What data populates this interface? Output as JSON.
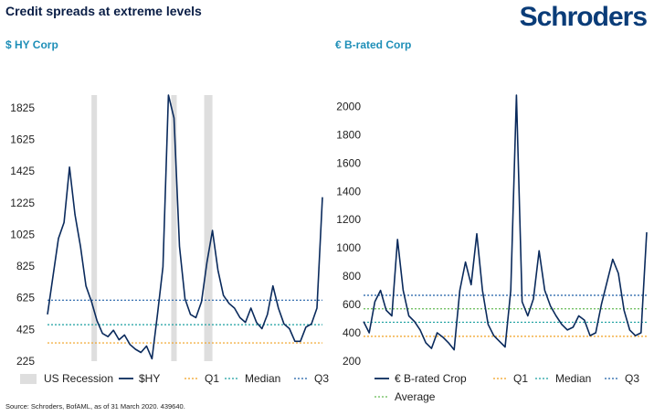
{
  "title": "Credit spreads at extreme levels",
  "logo": "Schroders",
  "source": "Source: Schroders, BofAML, as of 31 March 2020. 439640.",
  "colors": {
    "series": "#0a2a5c",
    "recession": "#dedede",
    "q1": "#f0a020",
    "median": "#1a9fa0",
    "q3": "#1f5fa8",
    "average": "#66bb55",
    "title": "#0a1e46",
    "subtitle": "#1f8fb8"
  },
  "chart_data": [
    {
      "type": "line",
      "subtitle": "$ HY Corp",
      "ylim": [
        225,
        1905
      ],
      "y_ticks": [
        1825,
        1625,
        1425,
        1225,
        1025,
        825,
        625,
        425,
        225
      ],
      "x": [
        0,
        2,
        4,
        6,
        8,
        10,
        12,
        14,
        16,
        18,
        20,
        22,
        24,
        26,
        28,
        30,
        32,
        34,
        36,
        38,
        40,
        42,
        44,
        46,
        48,
        50,
        52,
        54,
        56,
        58,
        60,
        62,
        64,
        66,
        68,
        70,
        72,
        74,
        76,
        78,
        80,
        82,
        84,
        86,
        88,
        90,
        92,
        94,
        96,
        98,
        100
      ],
      "series": [
        {
          "name": "$HY",
          "values": [
            520,
            760,
            1000,
            1100,
            1450,
            1150,
            950,
            700,
            600,
            480,
            400,
            380,
            420,
            360,
            390,
            330,
            300,
            280,
            320,
            240,
            520,
            820,
            1905,
            1760,
            950,
            620,
            520,
            500,
            600,
            850,
            1050,
            800,
            640,
            590,
            560,
            500,
            470,
            560,
            470,
            430,
            520,
            700,
            560,
            460,
            430,
            350,
            350,
            440,
            460,
            560,
            1260
          ]
        }
      ],
      "q1": 340,
      "median": 455,
      "q3": 610,
      "recessions": [
        [
          16,
          18
        ],
        [
          45,
          47
        ],
        [
          57,
          60
        ]
      ],
      "legend": [
        "US Recession",
        "$HY",
        "Q1",
        "Median",
        "Q3"
      ]
    },
    {
      "type": "line",
      "subtitle": "€ B-rated Corp",
      "ylim": [
        200,
        2080
      ],
      "y_ticks": [
        2000,
        1800,
        1600,
        1400,
        1200,
        1000,
        800,
        600,
        400,
        200
      ],
      "x": [
        0,
        2,
        4,
        6,
        8,
        10,
        12,
        14,
        16,
        18,
        20,
        22,
        24,
        26,
        28,
        30,
        32,
        34,
        36,
        38,
        40,
        42,
        44,
        46,
        48,
        50,
        52,
        54,
        56,
        58,
        60,
        62,
        64,
        66,
        68,
        70,
        72,
        74,
        76,
        78,
        80,
        82,
        84,
        86,
        88,
        90,
        92,
        94,
        96,
        98,
        100
      ],
      "series": [
        {
          "name": "€ B-rated Crop",
          "values": [
            480,
            400,
            620,
            700,
            560,
            520,
            1060,
            700,
            520,
            480,
            420,
            330,
            290,
            400,
            370,
            330,
            280,
            700,
            900,
            740,
            1100,
            700,
            460,
            380,
            340,
            300,
            700,
            2080,
            620,
            520,
            640,
            980,
            700,
            590,
            520,
            460,
            420,
            440,
            520,
            490,
            380,
            400,
            600,
            760,
            920,
            820,
            560,
            420,
            380,
            400,
            1110
          ]
        }
      ],
      "q1": 375,
      "median": 475,
      "q3": 665,
      "average": 570,
      "legend": [
        "€ B-rated Crop",
        "Q1",
        "Median",
        "Q3",
        "Average"
      ]
    }
  ]
}
